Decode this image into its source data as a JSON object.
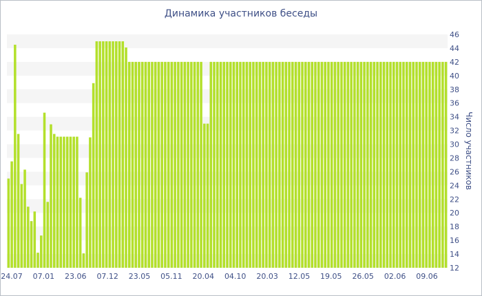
{
  "chart_data": {
    "type": "bar",
    "title": "Динамика участников беседы",
    "xlabel": "",
    "ylabel": "Число участников",
    "ylim": [
      12,
      46
    ],
    "yticks": [
      12,
      14,
      16,
      18,
      20,
      22,
      24,
      26,
      28,
      30,
      32,
      34,
      36,
      38,
      40,
      42,
      44,
      46
    ],
    "grid": "horizontal bands",
    "bar_color": "#b3e02b",
    "band_color": "#f5f5f5",
    "text_color": "#3e4f86",
    "x_tick_labels": [
      "24.07",
      "07.01",
      "23.06",
      "07.12",
      "23.05",
      "05.11",
      "20.04",
      "04.10",
      "20.03",
      "12.05",
      "19.05",
      "26.05",
      "02.06",
      "09.06"
    ],
    "values": [
      25,
      27.5,
      44.5,
      31.5,
      24.2,
      26.3,
      20.9,
      18.8,
      20.2,
      14.2,
      16.7,
      34.6,
      21.6,
      32.9,
      31.5,
      31.1,
      31.1,
      31.1,
      31.1,
      31.1,
      31.1,
      31.1,
      22.2,
      14.1,
      25.9,
      31,
      38.9,
      45,
      45,
      45,
      45,
      45,
      45,
      45,
      45,
      45,
      44.1,
      42,
      42,
      42,
      42,
      42,
      42,
      42,
      42,
      42,
      42,
      42,
      42,
      42,
      42,
      42,
      42,
      42,
      42,
      42,
      42,
      42,
      42,
      42,
      33,
      33,
      42,
      42,
      42,
      42,
      42,
      42,
      42,
      42,
      42,
      42,
      42,
      42,
      42,
      42,
      42,
      42,
      42,
      42,
      42,
      42,
      42,
      42,
      42,
      42,
      42,
      42,
      42,
      42,
      42,
      42,
      42,
      42,
      42,
      42,
      42,
      42,
      42,
      42,
      42,
      42,
      42,
      42,
      42,
      42,
      42,
      42,
      42,
      42,
      42,
      42,
      42,
      42,
      42,
      42,
      42,
      42,
      42,
      42,
      42,
      42,
      42,
      42,
      42,
      42,
      42,
      42,
      42,
      42,
      42,
      42,
      42,
      42,
      42
    ]
  }
}
